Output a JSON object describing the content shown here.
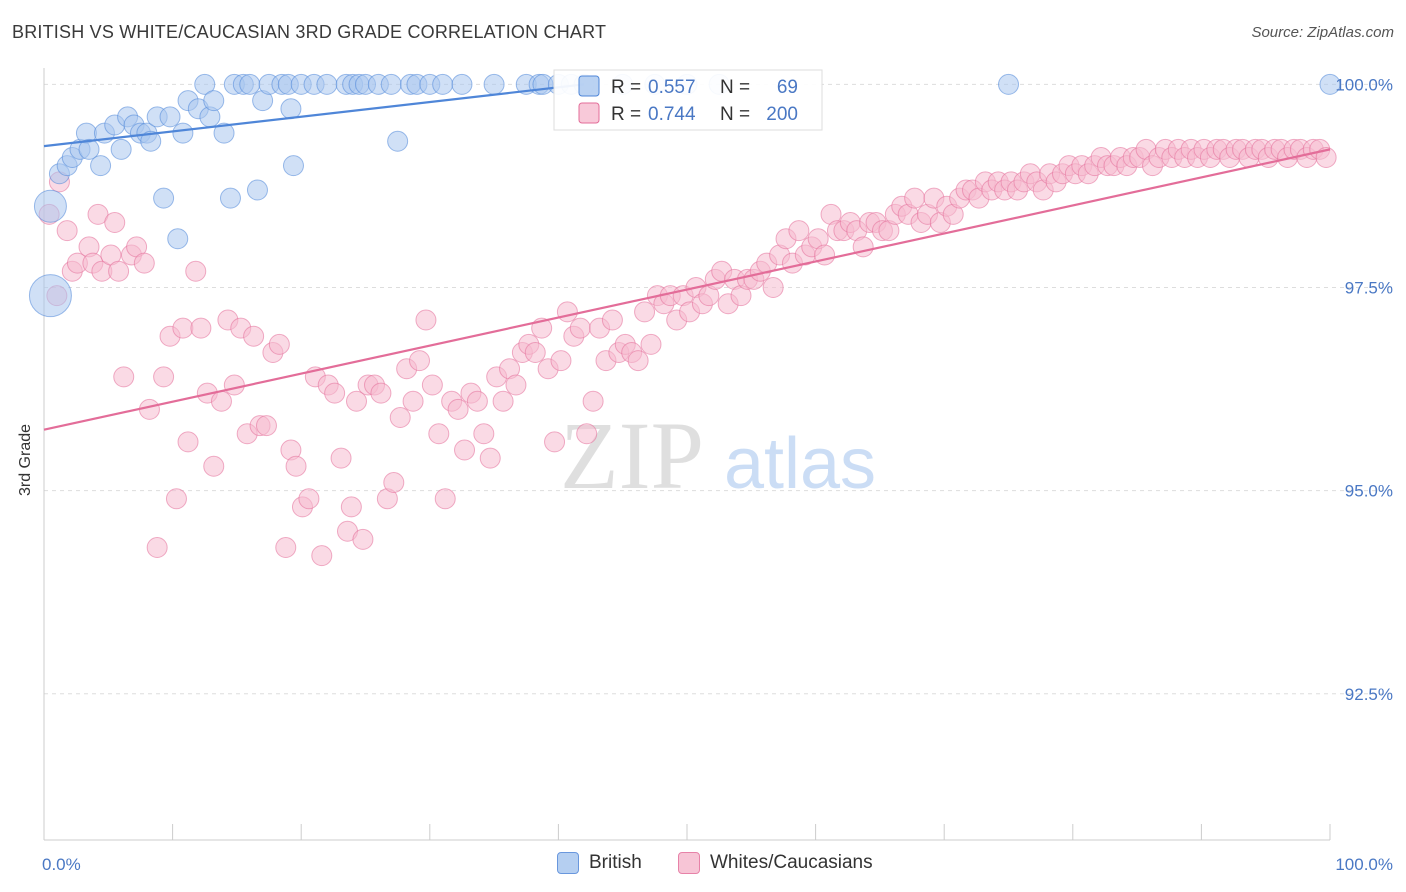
{
  "title": "BRITISH VS WHITE/CAUCASIAN 3RD GRADE CORRELATION CHART",
  "source": "Source: ZipAtlas.com",
  "watermark": {
    "zip": "ZIP",
    "atlas": "atlas"
  },
  "chart_data": {
    "type": "scatter",
    "xlabel": "",
    "ylabel": "3rd Grade",
    "xlim": [
      0,
      100
    ],
    "ylim": [
      90.7,
      100.3
    ],
    "x_tick_labels": [
      "0.0%",
      "100.0%"
    ],
    "y_ticks": [
      {
        "value": 100.0,
        "label": "100.0%"
      },
      {
        "value": 97.5,
        "label": "97.5%"
      },
      {
        "value": 95.0,
        "label": "95.0%"
      },
      {
        "value": 92.5,
        "label": "92.5%"
      }
    ],
    "grid": true,
    "legend_position": "top-center",
    "series": [
      {
        "name": "British",
        "color": "#4f86d8",
        "fill": "#a9c7ef",
        "R": "0.557",
        "N": "69",
        "trend": {
          "x": [
            0,
            42
          ],
          "y": [
            99.24,
            100.0
          ]
        },
        "points": [
          [
            0.5,
            98.5,
            26
          ],
          [
            0.5,
            97.4,
            36
          ],
          [
            1.2,
            98.9,
            14
          ],
          [
            1.8,
            99.0,
            14
          ],
          [
            2.2,
            99.1,
            14
          ],
          [
            2.8,
            99.2,
            14
          ],
          [
            3.3,
            99.4,
            14
          ],
          [
            3.5,
            99.2,
            14
          ],
          [
            4.4,
            99.0,
            14
          ],
          [
            4.7,
            99.4,
            14
          ],
          [
            5.5,
            99.5,
            14
          ],
          [
            6.0,
            99.2,
            14
          ],
          [
            6.5,
            99.6,
            14
          ],
          [
            7.0,
            99.5,
            14
          ],
          [
            7.5,
            99.4,
            14
          ],
          [
            8.0,
            99.4,
            14
          ],
          [
            8.3,
            99.3,
            14
          ],
          [
            8.8,
            99.6,
            14
          ],
          [
            9.3,
            98.6,
            14
          ],
          [
            9.8,
            99.6,
            14
          ],
          [
            10.4,
            98.1,
            14
          ],
          [
            10.8,
            99.4,
            14
          ],
          [
            11.2,
            99.8,
            14
          ],
          [
            12.0,
            99.7,
            14
          ],
          [
            12.5,
            100.0,
            14
          ],
          [
            12.9,
            99.6,
            14
          ],
          [
            13.2,
            99.8,
            14
          ],
          [
            14.0,
            99.4,
            14
          ],
          [
            14.5,
            98.6,
            14
          ],
          [
            14.8,
            100.0,
            14
          ],
          [
            15.5,
            100.0,
            14
          ],
          [
            16.0,
            100.0,
            14
          ],
          [
            16.6,
            98.7,
            14
          ],
          [
            17.0,
            99.8,
            14
          ],
          [
            17.5,
            100.0,
            14
          ],
          [
            18.5,
            100.0,
            14
          ],
          [
            19.0,
            100.0,
            14
          ],
          [
            19.2,
            99.7,
            14
          ],
          [
            19.4,
            99.0,
            14
          ],
          [
            20.0,
            100.0,
            14
          ],
          [
            21.0,
            100.0,
            14
          ],
          [
            22.0,
            100.0,
            14
          ],
          [
            23.5,
            100.0,
            14
          ],
          [
            24.0,
            100.0,
            14
          ],
          [
            24.5,
            100.0,
            14
          ],
          [
            25.0,
            100.0,
            14
          ],
          [
            26.0,
            100.0,
            14
          ],
          [
            27.0,
            100.0,
            14
          ],
          [
            27.5,
            99.3,
            14
          ],
          [
            28.5,
            100.0,
            14
          ],
          [
            29.0,
            100.0,
            14
          ],
          [
            30.0,
            100.0,
            14
          ],
          [
            31.0,
            100.0,
            14
          ],
          [
            32.5,
            100.0,
            14
          ],
          [
            35.0,
            100.0,
            14
          ],
          [
            37.5,
            100.0,
            14
          ],
          [
            38.5,
            100.0,
            14
          ],
          [
            38.8,
            100.0,
            14
          ],
          [
            40.0,
            100.0,
            14
          ],
          [
            41.0,
            100.0,
            14
          ],
          [
            42.0,
            100.0,
            14
          ],
          [
            45.0,
            100.0,
            14
          ],
          [
            47.5,
            100.0,
            14
          ],
          [
            50.0,
            100.0,
            14
          ],
          [
            52.5,
            100.0,
            14
          ],
          [
            75.0,
            100.0,
            14
          ],
          [
            100.0,
            100.0,
            14
          ]
        ]
      },
      {
        "name": "Whites/Caucasians",
        "color": "#e36d99",
        "fill": "#f6bcd0",
        "R": "0.744",
        "N": "200",
        "trend": {
          "x": [
            0,
            100
          ],
          "y": [
            95.75,
            99.2
          ]
        },
        "points": [
          [
            0.4,
            98.4
          ],
          [
            1.0,
            97.4
          ],
          [
            1.2,
            98.8
          ],
          [
            1.8,
            98.2
          ],
          [
            2.2,
            97.7
          ],
          [
            2.6,
            97.8
          ],
          [
            3.5,
            98.0
          ],
          [
            3.8,
            97.8
          ],
          [
            4.2,
            98.4
          ],
          [
            4.5,
            97.7
          ],
          [
            5.2,
            97.9
          ],
          [
            5.5,
            98.3
          ],
          [
            5.8,
            97.7
          ],
          [
            6.2,
            96.4
          ],
          [
            6.8,
            97.9
          ],
          [
            7.2,
            98.0
          ],
          [
            7.8,
            97.8
          ],
          [
            8.2,
            96.0
          ],
          [
            8.8,
            94.3
          ],
          [
            9.3,
            96.4
          ],
          [
            9.8,
            96.9
          ],
          [
            10.3,
            94.9
          ],
          [
            10.8,
            97.0
          ],
          [
            11.2,
            95.6
          ],
          [
            11.8,
            97.7
          ],
          [
            12.2,
            97.0
          ],
          [
            12.7,
            96.2
          ],
          [
            13.2,
            95.3
          ],
          [
            13.8,
            96.1
          ],
          [
            14.3,
            97.1
          ],
          [
            14.8,
            96.3
          ],
          [
            15.3,
            97.0
          ],
          [
            15.8,
            95.7
          ],
          [
            16.3,
            96.9
          ],
          [
            16.8,
            95.8
          ],
          [
            17.3,
            95.8
          ],
          [
            17.8,
            96.7
          ],
          [
            18.3,
            96.8
          ],
          [
            18.8,
            94.3
          ],
          [
            19.2,
            95.5
          ],
          [
            19.6,
            95.3
          ],
          [
            20.1,
            94.8
          ],
          [
            20.6,
            94.9
          ],
          [
            21.1,
            96.4
          ],
          [
            21.6,
            94.2
          ],
          [
            22.1,
            96.3
          ],
          [
            22.6,
            96.2
          ],
          [
            23.1,
            95.4
          ],
          [
            23.6,
            94.5
          ],
          [
            23.9,
            94.8
          ],
          [
            24.3,
            96.1
          ],
          [
            24.8,
            94.4
          ],
          [
            25.2,
            96.3
          ],
          [
            25.7,
            96.3
          ],
          [
            26.2,
            96.2
          ],
          [
            26.7,
            94.9
          ],
          [
            27.2,
            95.1
          ],
          [
            27.7,
            95.9
          ],
          [
            28.2,
            96.5
          ],
          [
            28.7,
            96.1
          ],
          [
            29.2,
            96.6
          ],
          [
            29.7,
            97.1
          ],
          [
            30.2,
            96.3
          ],
          [
            30.7,
            95.7
          ],
          [
            31.2,
            94.9
          ],
          [
            31.7,
            96.1
          ],
          [
            32.2,
            96.0
          ],
          [
            32.7,
            95.5
          ],
          [
            33.2,
            96.2
          ],
          [
            33.7,
            96.1
          ],
          [
            34.2,
            95.7
          ],
          [
            34.7,
            95.4
          ],
          [
            35.2,
            96.4
          ],
          [
            35.7,
            96.1
          ],
          [
            36.2,
            96.5
          ],
          [
            36.7,
            96.3
          ],
          [
            37.2,
            96.7
          ],
          [
            37.7,
            96.8
          ],
          [
            38.2,
            96.7
          ],
          [
            38.7,
            97.0
          ],
          [
            39.2,
            96.5
          ],
          [
            39.7,
            95.6
          ],
          [
            40.2,
            96.6
          ],
          [
            40.7,
            97.2
          ],
          [
            41.2,
            96.9
          ],
          [
            41.7,
            97.0
          ],
          [
            42.2,
            95.7
          ],
          [
            42.7,
            96.1
          ],
          [
            43.2,
            97.0
          ],
          [
            43.7,
            96.6
          ],
          [
            44.2,
            97.1
          ],
          [
            44.7,
            96.7
          ],
          [
            45.2,
            96.8
          ],
          [
            45.7,
            96.7
          ],
          [
            46.2,
            96.6
          ],
          [
            46.7,
            97.2
          ],
          [
            47.2,
            96.8
          ],
          [
            47.7,
            97.4
          ],
          [
            48.2,
            97.3
          ],
          [
            48.7,
            97.4
          ],
          [
            49.2,
            97.1
          ],
          [
            49.7,
            97.4
          ],
          [
            50.2,
            97.2
          ],
          [
            50.7,
            97.5
          ],
          [
            51.2,
            97.3
          ],
          [
            51.7,
            97.4
          ],
          [
            52.2,
            97.6
          ],
          [
            52.7,
            97.7
          ],
          [
            53.2,
            97.3
          ],
          [
            53.7,
            97.6
          ],
          [
            54.2,
            97.4
          ],
          [
            54.7,
            97.6
          ],
          [
            55.2,
            97.6
          ],
          [
            55.7,
            97.7
          ],
          [
            56.2,
            97.8
          ],
          [
            56.7,
            97.5
          ],
          [
            57.2,
            97.9
          ],
          [
            57.7,
            98.1
          ],
          [
            58.2,
            97.8
          ],
          [
            58.7,
            98.2
          ],
          [
            59.2,
            97.9
          ],
          [
            59.7,
            98.0
          ],
          [
            60.2,
            98.1
          ],
          [
            60.7,
            97.9
          ],
          [
            61.2,
            98.4
          ],
          [
            61.7,
            98.2
          ],
          [
            62.2,
            98.2
          ],
          [
            62.7,
            98.3
          ],
          [
            63.2,
            98.2
          ],
          [
            63.7,
            98.0
          ],
          [
            64.2,
            98.3
          ],
          [
            64.7,
            98.3
          ],
          [
            65.2,
            98.2
          ],
          [
            65.7,
            98.2
          ],
          [
            66.2,
            98.4
          ],
          [
            66.7,
            98.5
          ],
          [
            67.2,
            98.4
          ],
          [
            67.7,
            98.6
          ],
          [
            68.2,
            98.3
          ],
          [
            68.7,
            98.4
          ],
          [
            69.2,
            98.6
          ],
          [
            69.7,
            98.3
          ],
          [
            70.2,
            98.5
          ],
          [
            70.7,
            98.4
          ],
          [
            71.2,
            98.6
          ],
          [
            71.7,
            98.7
          ],
          [
            72.2,
            98.7
          ],
          [
            72.7,
            98.6
          ],
          [
            73.2,
            98.8
          ],
          [
            73.7,
            98.7
          ],
          [
            74.2,
            98.8
          ],
          [
            74.7,
            98.7
          ],
          [
            75.2,
            98.8
          ],
          [
            75.7,
            98.7
          ],
          [
            76.2,
            98.8
          ],
          [
            76.7,
            98.9
          ],
          [
            77.2,
            98.8
          ],
          [
            77.7,
            98.7
          ],
          [
            78.2,
            98.9
          ],
          [
            78.7,
            98.8
          ],
          [
            79.2,
            98.9
          ],
          [
            79.7,
            99.0
          ],
          [
            80.2,
            98.9
          ],
          [
            80.7,
            99.0
          ],
          [
            81.2,
            98.9
          ],
          [
            81.7,
            99.0
          ],
          [
            82.2,
            99.1
          ],
          [
            82.7,
            99.0
          ],
          [
            83.2,
            99.0
          ],
          [
            83.7,
            99.1
          ],
          [
            84.2,
            99.0
          ],
          [
            84.7,
            99.1
          ],
          [
            85.2,
            99.1
          ],
          [
            85.7,
            99.2
          ],
          [
            86.2,
            99.0
          ],
          [
            86.7,
            99.1
          ],
          [
            87.2,
            99.2
          ],
          [
            87.7,
            99.1
          ],
          [
            88.2,
            99.2
          ],
          [
            88.7,
            99.1
          ],
          [
            89.2,
            99.2
          ],
          [
            89.7,
            99.1
          ],
          [
            90.2,
            99.2
          ],
          [
            90.7,
            99.1
          ],
          [
            91.2,
            99.2
          ],
          [
            91.7,
            99.2
          ],
          [
            92.2,
            99.1
          ],
          [
            92.7,
            99.2
          ],
          [
            93.2,
            99.2
          ],
          [
            93.7,
            99.1
          ],
          [
            94.2,
            99.2
          ],
          [
            94.7,
            99.2
          ],
          [
            95.2,
            99.1
          ],
          [
            95.7,
            99.2
          ],
          [
            96.2,
            99.2
          ],
          [
            96.7,
            99.1
          ],
          [
            97.2,
            99.2
          ],
          [
            97.7,
            99.2
          ],
          [
            98.2,
            99.1
          ],
          [
            98.7,
            99.2
          ],
          [
            99.2,
            99.2
          ],
          [
            99.7,
            99.1
          ]
        ]
      }
    ]
  },
  "legend": {
    "r_label": "R =",
    "n_label": "N ="
  }
}
